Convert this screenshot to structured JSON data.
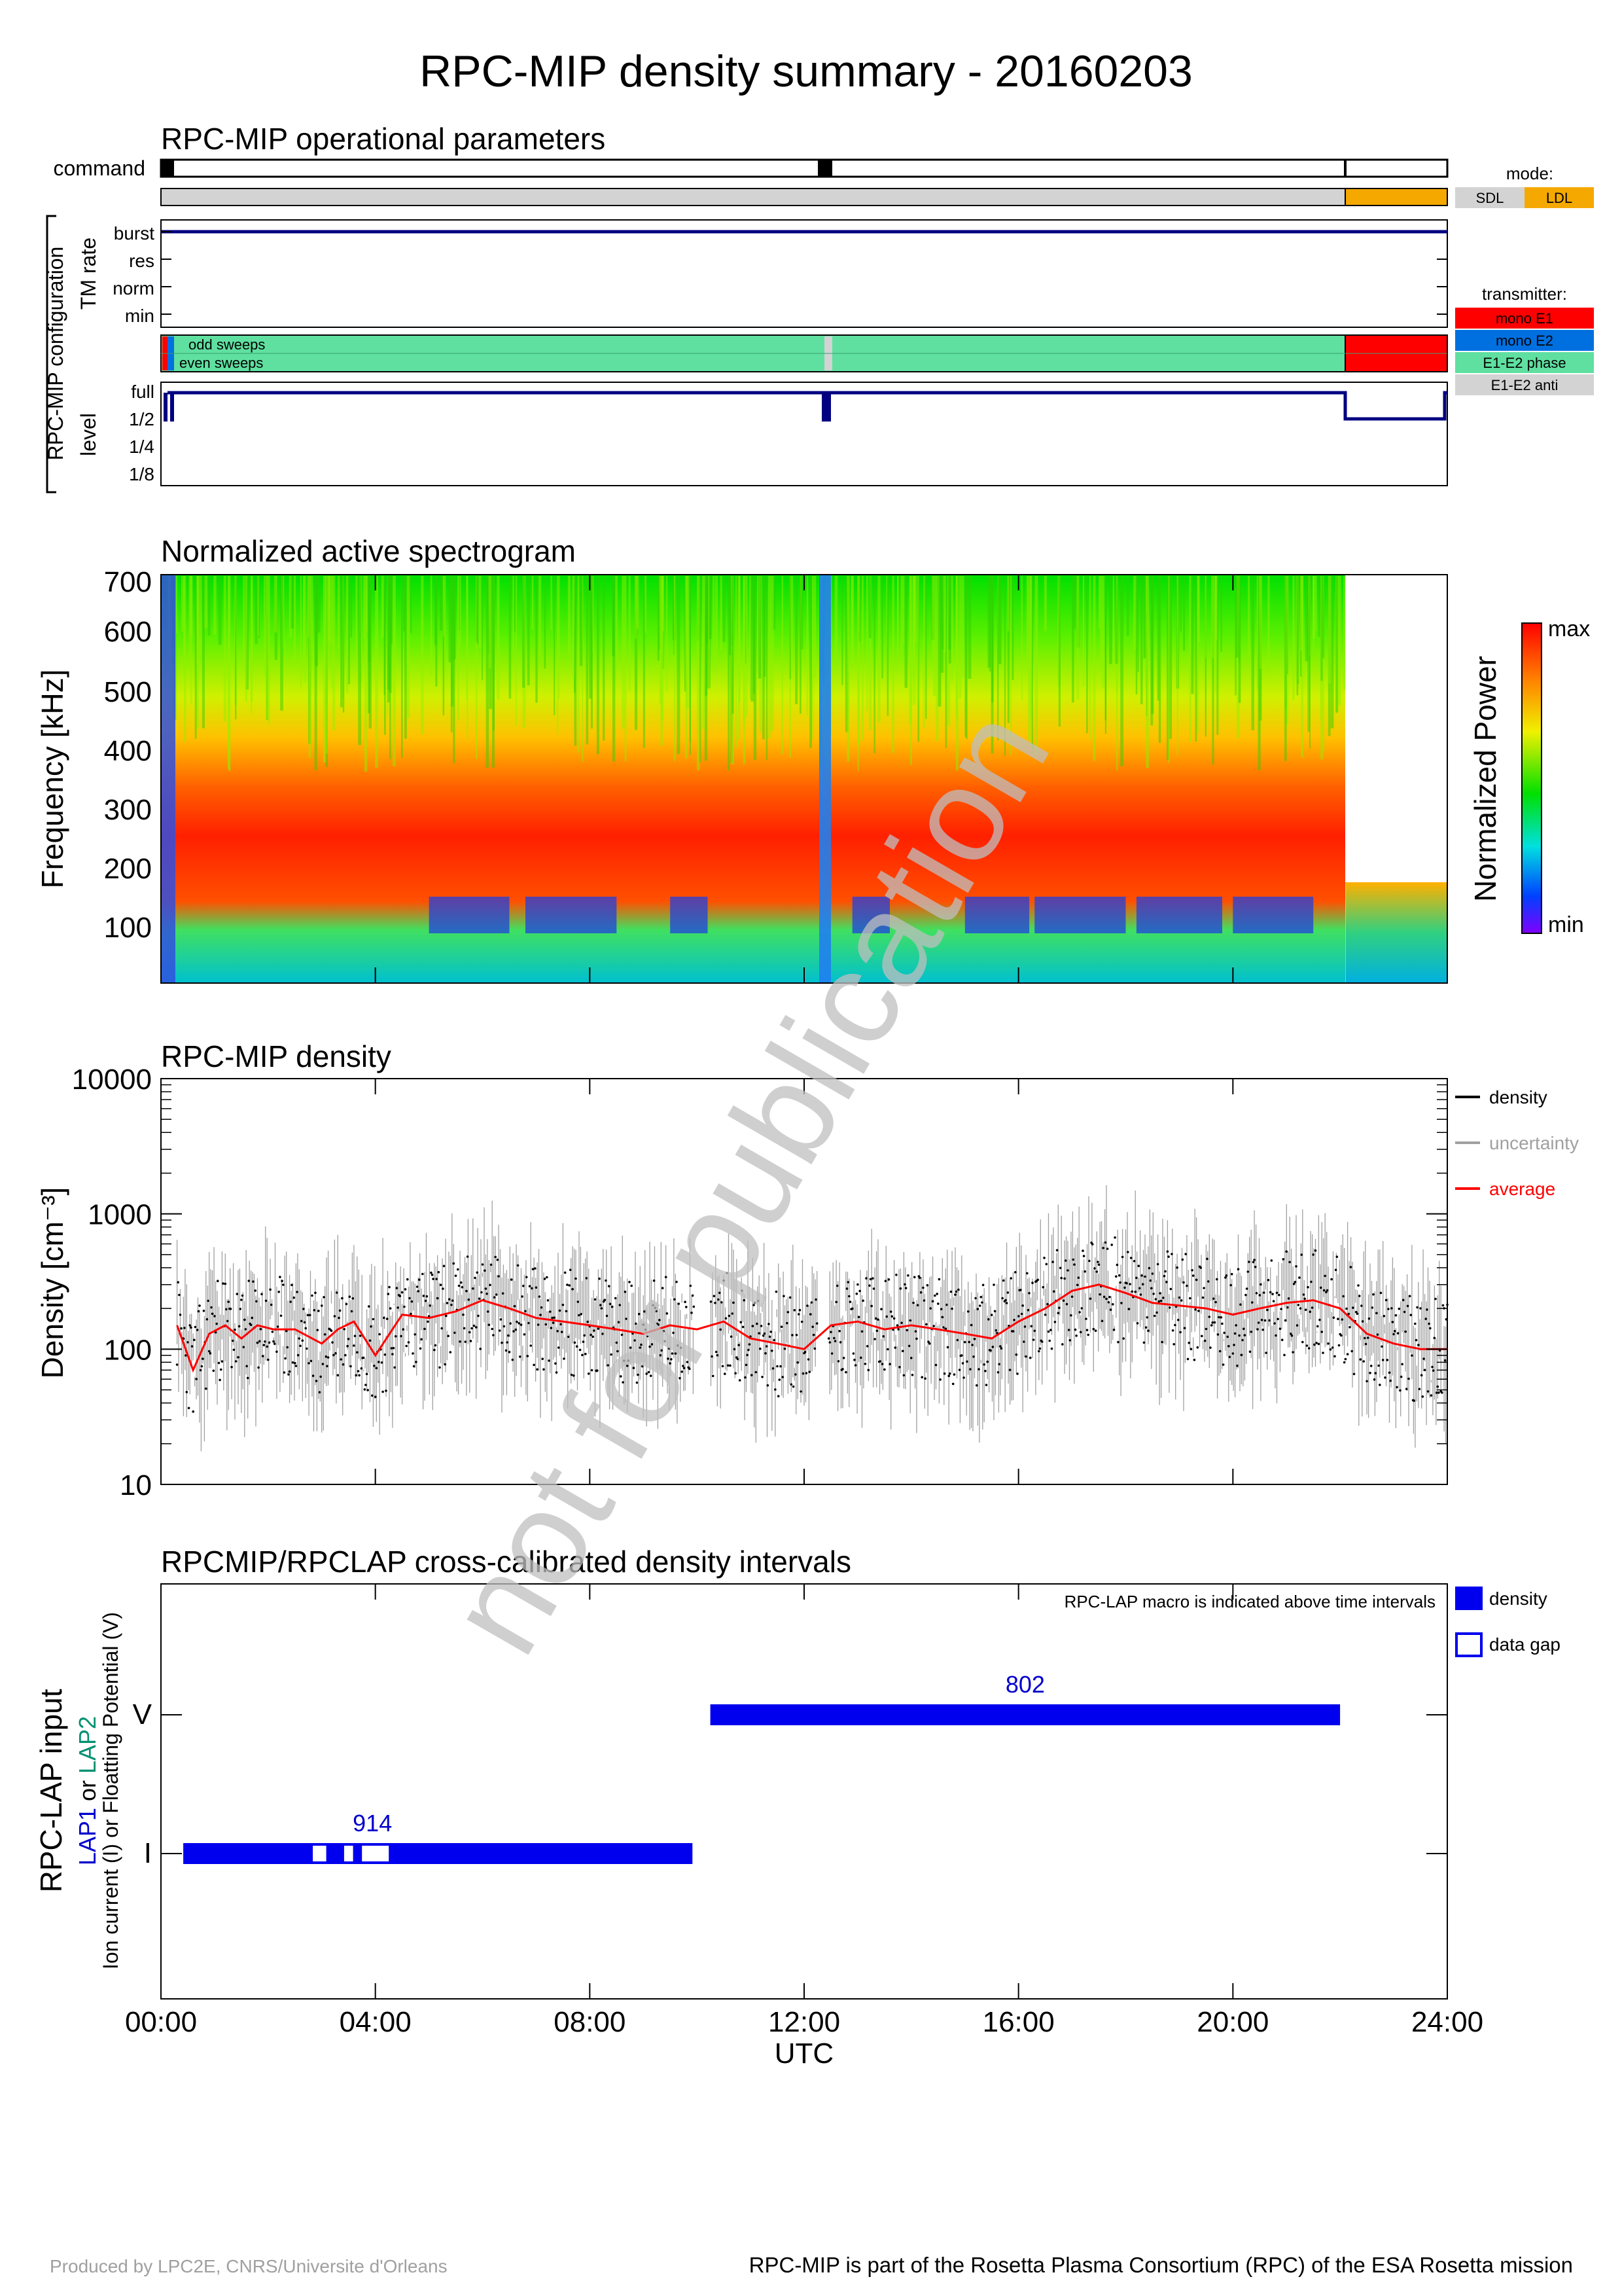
{
  "title": "RPC-MIP density summary - 20160203",
  "watermark": "not for publication",
  "footer": {
    "left": "Produced by LPC2E, CNRS/Universite d'Orleans",
    "right": "RPC-MIP is part of the Rosetta Plasma Consortium (RPC) of the ESA Rosetta mission"
  },
  "colors": {
    "navy": "#000080",
    "sdl": "#d3d3d3",
    "ldl": "#f5a800",
    "mono_e1": "#ff0000",
    "mono_e2": "#0070e0",
    "e1e2_phase": "#5fe0a0",
    "e1e2_anti": "#d3d3d3",
    "density_bar": "#0000ee",
    "average": "#ff0000",
    "uncertainty": "#a0a0a0",
    "lap2": "#009070"
  },
  "ops": {
    "title": "RPC-MIP operational parameters",
    "command_label": "command",
    "config_label": "RPC-MIP configuration",
    "tm_rate_label": "TM rate",
    "tm_levels": [
      "burst",
      "res",
      "norm",
      "min"
    ],
    "sweeps": [
      "odd sweeps",
      "even sweeps"
    ],
    "level_label": "level",
    "levels": [
      "full",
      "1/2",
      "1/4",
      "1/8"
    ],
    "mode_title": "mode:",
    "mode_items": [
      "SDL",
      "LDL"
    ],
    "transmitter_title": "transmitter:",
    "transmitter_items": [
      "mono E1",
      "mono E2",
      "E1-E2 phase",
      "E1-E2 anti"
    ]
  },
  "spectrogram": {
    "title": "Normalized active spectrogram",
    "ylabel": "Frequency [kHz]",
    "yticks": [
      "700",
      "600",
      "500",
      "400",
      "300",
      "200",
      "100"
    ],
    "colorbar_label": "Normalized Power",
    "colorbar_max": "max",
    "colorbar_min": "min"
  },
  "chart_data": [
    {
      "type": "scatter",
      "title": "RPC-MIP density",
      "xlabel": "UTC",
      "ylabel": "Density [cm⁻³]",
      "yscale": "log",
      "ylim": [
        10,
        10000
      ],
      "xlim_hours": [
        0,
        24
      ],
      "yticks": [
        "10000",
        "1000",
        "100",
        "10"
      ],
      "legend": [
        "density",
        "uncertainty",
        "average"
      ],
      "series": [
        {
          "name": "average",
          "x": [
            0.3,
            0.6,
            0.9,
            1.2,
            1.5,
            1.8,
            2.1,
            2.5,
            3.0,
            3.3,
            3.6,
            4.0,
            4.5,
            5.0,
            5.5,
            6.0,
            6.5,
            7.0,
            7.5,
            8.0,
            8.5,
            9.0,
            9.5,
            10.0,
            10.5,
            11.0,
            11.5,
            12.0,
            12.5,
            13.0,
            13.5,
            14.0,
            14.5,
            15.0,
            15.5,
            16.0,
            16.5,
            17.0,
            17.5,
            18.0,
            18.5,
            19.0,
            19.5,
            20.0,
            20.5,
            21.0,
            21.5,
            22.0,
            22.5,
            23.0,
            23.5,
            24.0
          ],
          "y": [
            150,
            70,
            130,
            150,
            120,
            150,
            140,
            140,
            110,
            140,
            160,
            90,
            180,
            170,
            190,
            230,
            200,
            170,
            160,
            150,
            140,
            130,
            150,
            140,
            160,
            120,
            110,
            100,
            150,
            160,
            140,
            150,
            140,
            130,
            120,
            160,
            200,
            270,
            300,
            260,
            220,
            210,
            200,
            180,
            200,
            220,
            230,
            200,
            130,
            110,
            100,
            100
          ]
        }
      ]
    },
    {
      "type": "bar",
      "title": "RPCMIP/RPCLAP cross-calibrated density intervals",
      "xlabel": "UTC",
      "ylabel": "RPC-LAP input",
      "ylabel_lap1": "LAP1",
      "ylabel_or": " or ",
      "ylabel_lap2": "LAP2",
      "ylabel_sub": "Ion current (I) or Floatting Potential (V)",
      "note": "RPC-LAP macro is indicated above time intervals",
      "yticks": [
        "V",
        "I"
      ],
      "xticks": [
        "00:00",
        "04:00",
        "08:00",
        "12:00",
        "16:00",
        "20:00",
        "24:00"
      ],
      "legend": [
        "density",
        "data gap"
      ],
      "intervals": [
        {
          "row": "I",
          "start": "00:25",
          "end": "09:55",
          "macro": "914",
          "gaps": [
            [
              "02:50",
              "03:05"
            ],
            [
              "03:25",
              "03:35"
            ],
            [
              "03:45",
              "04:15"
            ]
          ]
        },
        {
          "row": "V",
          "start": "10:15",
          "end": "22:00",
          "macro": "802",
          "gaps": []
        }
      ]
    }
  ]
}
